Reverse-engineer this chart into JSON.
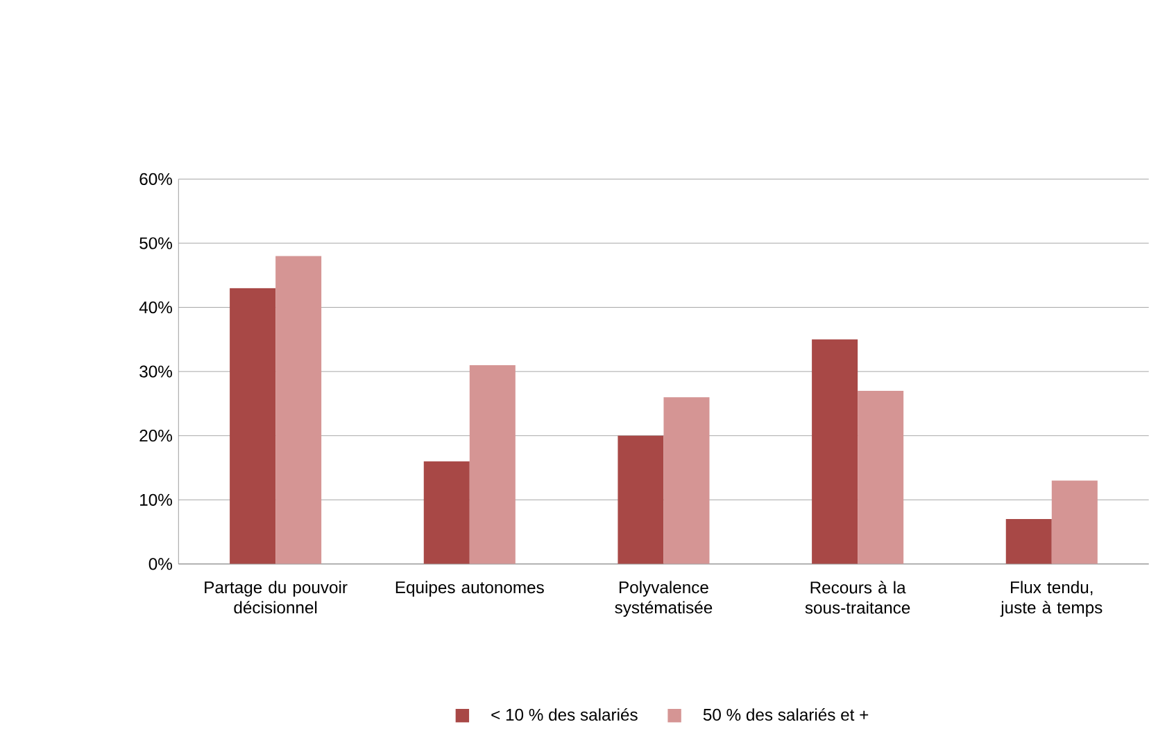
{
  "chart_data": {
    "type": "bar",
    "categories": [
      "Partage du pouvoir décisionnel",
      "Equipes autonomes",
      "Polyvalence systématisée",
      "Recours à la sous-traitance",
      "Flux tendu, juste à temps"
    ],
    "series": [
      {
        "name": "< 10 % des salariés",
        "color": "#a84846",
        "values": [
          43,
          16,
          20,
          35,
          7
        ]
      },
      {
        "name": "50 % des salariés et +",
        "color": "#d59594",
        "values": [
          48,
          31,
          26,
          27,
          13
        ]
      }
    ],
    "ylim": [
      0,
      60
    ],
    "yticks": [
      {
        "value": 0,
        "label": "0%"
      },
      {
        "value": 10,
        "label": "10%"
      },
      {
        "value": 20,
        "label": "20%"
      },
      {
        "value": 30,
        "label": "30%"
      },
      {
        "value": 40,
        "label": "40%"
      },
      {
        "value": 50,
        "label": "50%"
      },
      {
        "value": 60,
        "label": "60%"
      }
    ],
    "grid": "y",
    "legend": "bottom"
  }
}
